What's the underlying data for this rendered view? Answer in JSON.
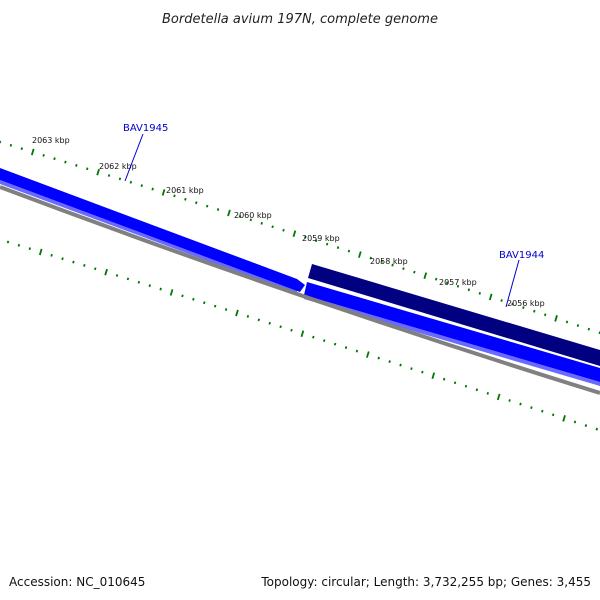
{
  "title": "Bordetella avium 197N, complete genome",
  "footer": {
    "accession": "Accession: NC_010645",
    "summary": "Topology: circular; Length: 3,732,255 bp; Genes: 3,455"
  },
  "ticks": [
    {
      "label": "2063 kbp"
    },
    {
      "label": "2062 kbp"
    },
    {
      "label": "2061 kbp"
    },
    {
      "label": "2060 kbp"
    },
    {
      "label": "2059 kbp"
    },
    {
      "label": "2058 kbp"
    },
    {
      "label": "2057 kbp"
    },
    {
      "label": "2056 kbp"
    }
  ],
  "genes": [
    {
      "name": "BAV1945",
      "strand": "forward",
      "color": "#0000ff"
    },
    {
      "name": "BAV1944",
      "strand": "reverse",
      "color": "#000080"
    }
  ],
  "colors": {
    "forward_gene": "#0000ff",
    "forward_gene_light": "#6a6aff",
    "reverse_gene": "#000080",
    "backbone": "#808080",
    "tick": "#007700",
    "gene_label": "#0000cc"
  }
}
